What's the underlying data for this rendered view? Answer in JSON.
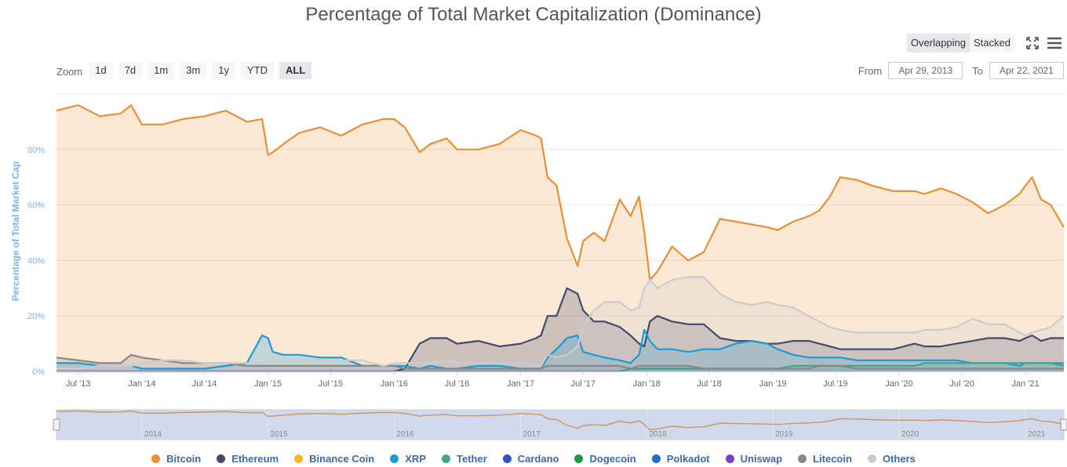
{
  "title": "Percentage of Total Market Capitalization (Dominance)",
  "chart_type_buttons": [
    "Overlapping",
    "Stacked"
  ],
  "zoom": {
    "label": "Zoom",
    "buttons": [
      "1d",
      "7d",
      "1m",
      "3m",
      "1y",
      "YTD",
      "ALL"
    ],
    "active": "ALL"
  },
  "range": {
    "from_label": "From",
    "from_value": "Apr 29, 2013",
    "to_label": "To",
    "to_value": "Apr 22, 2021"
  },
  "icons": {
    "fullscreen": "fullscreen-icon",
    "menu": "hamburger-menu-icon"
  },
  "navigator_labels": [
    "2014",
    "2015",
    "2016",
    "2017",
    "2018",
    "2019",
    "2020",
    "2021"
  ],
  "chart_data": {
    "type": "area",
    "title": "Percentage of Total Market Capitalization (Dominance)",
    "ylabel": "Percentage of Total Market Cap",
    "xlabel": "",
    "ylim": [
      0,
      100
    ],
    "yticks": [
      "0%",
      "20%",
      "40%",
      "60%",
      "80%"
    ],
    "xticks": [
      "Jul '13",
      "Jan '14",
      "Jul '14",
      "Jan '15",
      "Jul '15",
      "Jan '16",
      "Jul '16",
      "Jan '17",
      "Jul '17",
      "Jan '18",
      "Jul '18",
      "Jan '19",
      "Jul '19",
      "Jan '20",
      "Jul '20",
      "Jan '21"
    ],
    "x": [
      "2013-04-29",
      "2013-07-01",
      "2013-09-01",
      "2013-11-01",
      "2013-12-01",
      "2014-01-01",
      "2014-03-01",
      "2014-05-01",
      "2014-07-01",
      "2014-09-01",
      "2014-11-01",
      "2014-12-15",
      "2015-01-01",
      "2015-01-15",
      "2015-02-15",
      "2015-04-01",
      "2015-06-01",
      "2015-08-01",
      "2015-10-01",
      "2015-12-01",
      "2016-01-01",
      "2016-02-01",
      "2016-03-15",
      "2016-04-15",
      "2016-06-01",
      "2016-07-01",
      "2016-09-01",
      "2016-11-01",
      "2017-01-01",
      "2017-02-15",
      "2017-03-01",
      "2017-03-20",
      "2017-04-15",
      "2017-05-15",
      "2017-06-15",
      "2017-07-01",
      "2017-08-01",
      "2017-09-01",
      "2017-10-15",
      "2017-11-15",
      "2017-12-10",
      "2017-12-25",
      "2018-01-10",
      "2018-02-01",
      "2018-03-15",
      "2018-05-01",
      "2018-06-15",
      "2018-08-01",
      "2018-09-15",
      "2018-11-01",
      "2018-12-15",
      "2019-01-15",
      "2019-03-01",
      "2019-04-15",
      "2019-05-15",
      "2019-06-15",
      "2019-07-15",
      "2019-09-01",
      "2019-10-15",
      "2019-12-15",
      "2020-02-15",
      "2020-03-15",
      "2020-05-01",
      "2020-06-15",
      "2020-08-01",
      "2020-09-15",
      "2020-11-01",
      "2020-12-15",
      "2021-01-01",
      "2021-01-20",
      "2021-02-15",
      "2021-03-15",
      "2021-04-22"
    ],
    "series": [
      {
        "name": "Bitcoin",
        "color": "#ea8f33",
        "values": [
          94,
          96,
          92,
          93,
          96,
          89,
          89,
          91,
          92,
          94,
          90,
          91,
          78,
          79,
          82,
          86,
          88,
          85,
          89,
          91,
          91,
          88,
          79,
          82,
          84,
          80,
          80,
          82,
          87,
          85,
          84,
          70,
          67,
          48,
          38,
          47,
          50,
          47,
          62,
          56,
          63,
          50,
          33,
          36,
          45,
          40,
          43,
          55,
          54,
          53,
          52,
          51,
          54,
          56,
          58,
          63,
          70,
          69,
          67,
          65,
          65,
          64,
          66,
          64,
          61,
          57,
          60,
          64,
          67,
          70,
          62,
          60,
          52
        ]
      },
      {
        "name": "Ethereum",
        "color": "#434a6e",
        "values": [
          0,
          0,
          0,
          0,
          0,
          0,
          0,
          0,
          0,
          0,
          0,
          0,
          0,
          0,
          0,
          0,
          0,
          0,
          0,
          0,
          0,
          1,
          10,
          12,
          12,
          10,
          11,
          9,
          10,
          12,
          13,
          20,
          20,
          30,
          28,
          22,
          18,
          18,
          16,
          13,
          10,
          9,
          18,
          20,
          18,
          17,
          17,
          12,
          11,
          11,
          10,
          10,
          11,
          11,
          10,
          9,
          8,
          8,
          8,
          8,
          10,
          9,
          9,
          10,
          11,
          12,
          12,
          11,
          12,
          13,
          11,
          12,
          12
        ]
      },
      {
        "name": "XRP",
        "color": "#1b9bd6",
        "values": [
          3,
          3,
          2,
          2,
          2,
          1,
          1,
          1,
          1,
          2,
          3,
          13,
          12,
          7,
          6,
          6,
          5,
          5,
          2,
          2,
          2,
          2,
          1,
          2,
          1,
          1,
          2,
          2,
          1,
          1,
          1,
          5,
          8,
          12,
          13,
          7,
          6,
          5,
          4,
          3,
          6,
          15,
          11,
          8,
          8,
          7,
          8,
          8,
          10,
          11,
          10,
          8,
          6,
          5,
          5,
          5,
          5,
          4,
          4,
          4,
          4,
          4,
          4,
          4,
          3,
          3,
          3,
          2,
          3,
          3,
          3,
          3,
          3
        ]
      },
      {
        "name": "Tether",
        "color": "#3ca88d",
        "values": [
          0,
          0,
          0,
          0,
          0,
          0,
          0,
          0,
          0,
          0,
          0,
          0,
          0,
          0,
          0,
          0,
          0,
          0,
          0,
          0,
          0,
          0,
          0,
          0,
          0,
          0,
          0,
          0,
          0,
          0,
          0,
          0,
          0,
          0,
          0,
          0,
          0,
          0,
          0,
          1,
          1,
          1,
          1,
          1,
          1,
          1,
          1,
          1,
          1,
          1,
          1,
          1,
          2,
          2,
          2,
          2,
          2,
          2,
          2,
          2,
          2,
          3,
          3,
          3,
          3,
          3,
          3,
          3,
          3,
          3,
          3,
          3,
          2
        ]
      },
      {
        "name": "Litecoin",
        "color": "#888888",
        "values": [
          5,
          4,
          3,
          3,
          6,
          5,
          4,
          3,
          3,
          3,
          2,
          2,
          2,
          2,
          2,
          2,
          2,
          2,
          2,
          2,
          2,
          1,
          1,
          1,
          1,
          1,
          1,
          1,
          1,
          1,
          1,
          2,
          2,
          2,
          2,
          2,
          2,
          2,
          2,
          1,
          2,
          2,
          2,
          2,
          2,
          2,
          1,
          1,
          1,
          1,
          1,
          1,
          1,
          1,
          2,
          2,
          2,
          1,
          1,
          1,
          1,
          1,
          1,
          1,
          1,
          1,
          1,
          1,
          1,
          1,
          1,
          1,
          1
        ]
      },
      {
        "name": "Others",
        "color": "#cccccc",
        "values": [
          1,
          1,
          2,
          2,
          2,
          3,
          4,
          4,
          3,
          3,
          3,
          3,
          4,
          4,
          4,
          4,
          4,
          4,
          4,
          2,
          3,
          3,
          3,
          3,
          4,
          3,
          3,
          3,
          3,
          2,
          2,
          6,
          5,
          6,
          9,
          16,
          22,
          25,
          25,
          22,
          23,
          30,
          33,
          30,
          33,
          34,
          34,
          28,
          25,
          24,
          25,
          24,
          23,
          20,
          18,
          16,
          15,
          14,
          14,
          14,
          14,
          15,
          15,
          16,
          19,
          17,
          17,
          14,
          13,
          14,
          15,
          16,
          20
        ]
      }
    ],
    "legend": [
      "Bitcoin",
      "Ethereum",
      "Binance Coin",
      "XRP",
      "Tether",
      "Cardano",
      "Dogecoin",
      "Polkadot",
      "Uniswap",
      "Litecoin",
      "Others"
    ],
    "legend_colors": [
      "#ea8f33",
      "#434a6e",
      "#f3b62c",
      "#1b9bd6",
      "#3ca88d",
      "#2a56c6",
      "#1e9c3f",
      "#1a6fcf",
      "#7b3fc7",
      "#888888",
      "#cccccc"
    ],
    "legend_position": "bottom",
    "grid": true
  }
}
